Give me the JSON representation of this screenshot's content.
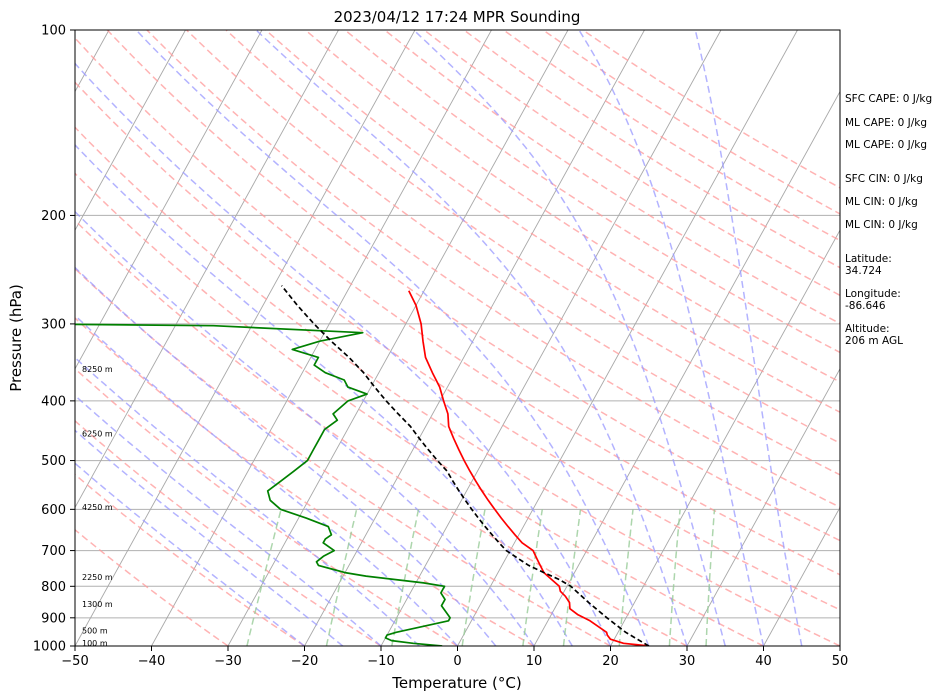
{
  "chart_data": {
    "type": "line",
    "title": "2023/04/12 17:24 MPR Sounding",
    "xlabel": "Temperature (°C)",
    "ylabel": "Pressure (hPa)",
    "xlim": [
      -50,
      50
    ],
    "ylim": [
      1000,
      100
    ],
    "yscale": "log",
    "xticks": [
      -50,
      -40,
      -30,
      -20,
      -10,
      0,
      10,
      20,
      30,
      40,
      50
    ],
    "yticks": [
      1000,
      900,
      800,
      700,
      600,
      500,
      400,
      300,
      200,
      100
    ],
    "skew": true,
    "grid": true,
    "series": [
      {
        "color": "#ff0000",
        "p": [
          1000,
          990,
          975,
          960,
          950,
          930,
          910,
          890,
          870,
          850,
          830,
          815,
          800,
          780,
          760,
          740,
          720,
          700,
          680,
          660,
          640,
          620,
          600,
          580,
          560,
          540,
          520,
          500,
          480,
          460,
          440,
          420,
          400,
          380,
          360,
          340,
          320,
          300,
          280,
          265
        ],
        "values": [
          25,
          21.5,
          19.5,
          18.8,
          18.5,
          17,
          15.5,
          13.5,
          12,
          11.5,
          10.5,
          9.5,
          9,
          7.5,
          6,
          5,
          4,
          3,
          1,
          -0.5,
          -2,
          -3.5,
          -5,
          -6.5,
          -8,
          -9.5,
          -11,
          -12.5,
          -14,
          -15.5,
          -17,
          -18,
          -19.5,
          -21,
          -23,
          -25,
          -26.5,
          -28,
          -30,
          -32
        ]
      },
      {
        "color": "#008000",
        "p": [
          1000,
          990,
          980,
          970,
          960,
          950,
          930,
          910,
          900,
          880,
          860,
          840,
          820,
          800,
          790,
          780,
          770,
          760,
          750,
          740,
          730,
          715,
          700,
          690,
          680,
          670,
          660,
          650,
          640,
          620,
          600,
          580,
          560,
          540,
          520,
          500,
          480,
          460,
          445,
          430,
          420,
          400,
          390,
          380,
          370,
          360,
          350,
          340,
          330,
          320,
          310,
          302,
          300
        ],
        "values": [
          -2,
          -6,
          -9,
          -10,
          -10,
          -9,
          -6,
          -3,
          -3,
          -4,
          -5,
          -5,
          -6,
          -6,
          -9,
          -13,
          -17,
          -20,
          -22,
          -24,
          -24.5,
          -24,
          -23,
          -24,
          -25,
          -25,
          -24.5,
          -25,
          -25.5,
          -29,
          -33,
          -35,
          -36,
          -35,
          -34,
          -33,
          -33,
          -33,
          -33,
          -32,
          -33,
          -32,
          -30,
          -33,
          -34,
          -37,
          -39,
          -39,
          -43,
          -40,
          -35,
          -55,
          -80
        ]
      },
      {
        "color": "#000000",
        "dashed": true,
        "p": [
          1000,
          950,
          900,
          850,
          800,
          780,
          760,
          740,
          720,
          700,
          680,
          660,
          640,
          620,
          600,
          580,
          560,
          540,
          520,
          500,
          480,
          460,
          440,
          420,
          400,
          380,
          360,
          340,
          320,
          300,
          280,
          260
        ],
        "values": [
          25,
          21,
          17.5,
          14,
          10.5,
          8.5,
          6,
          3.5,
          1.5,
          -0.5,
          -2,
          -3.5,
          -5,
          -6.5,
          -8,
          -9.5,
          -11,
          -12.5,
          -14,
          -16,
          -18,
          -20,
          -22,
          -24.5,
          -27,
          -29.5,
          -32,
          -35,
          -38.5,
          -42,
          -45.5,
          -49
        ]
      }
    ],
    "height_labels": [
      "100 m",
      "500 m",
      "1300 m",
      "2250 m",
      "4250 m",
      "6250 m",
      "8250 m"
    ],
    "height_pressures": [
      988,
      943,
      855,
      773,
      595,
      452,
      355
    ]
  },
  "side_info": [
    "SFC CAPE: 0 J/kg",
    "ML CAPE: 0 J/kg",
    "ML CAPE: 0 J/kg",
    "SFC CIN: 0 J/kg",
    "ML CIN: 0 J/kg",
    "ML CIN: 0 J/kg"
  ],
  "location": {
    "latitude_label": "Latitude:",
    "latitude": "34.724",
    "longitude_label": "Longitude:",
    "longitude": "-86.646",
    "altitude_label": "Altitude:",
    "altitude": "206 m AGL"
  },
  "colors": {
    "temperature": "#ff0000",
    "dewpoint": "#008000",
    "parcel": "#000000",
    "dry_adiabat": "#ff9999",
    "moist_adiabat": "#9999ff",
    "mixing_ratio": "#99cc99",
    "isotherm": "#999999"
  }
}
